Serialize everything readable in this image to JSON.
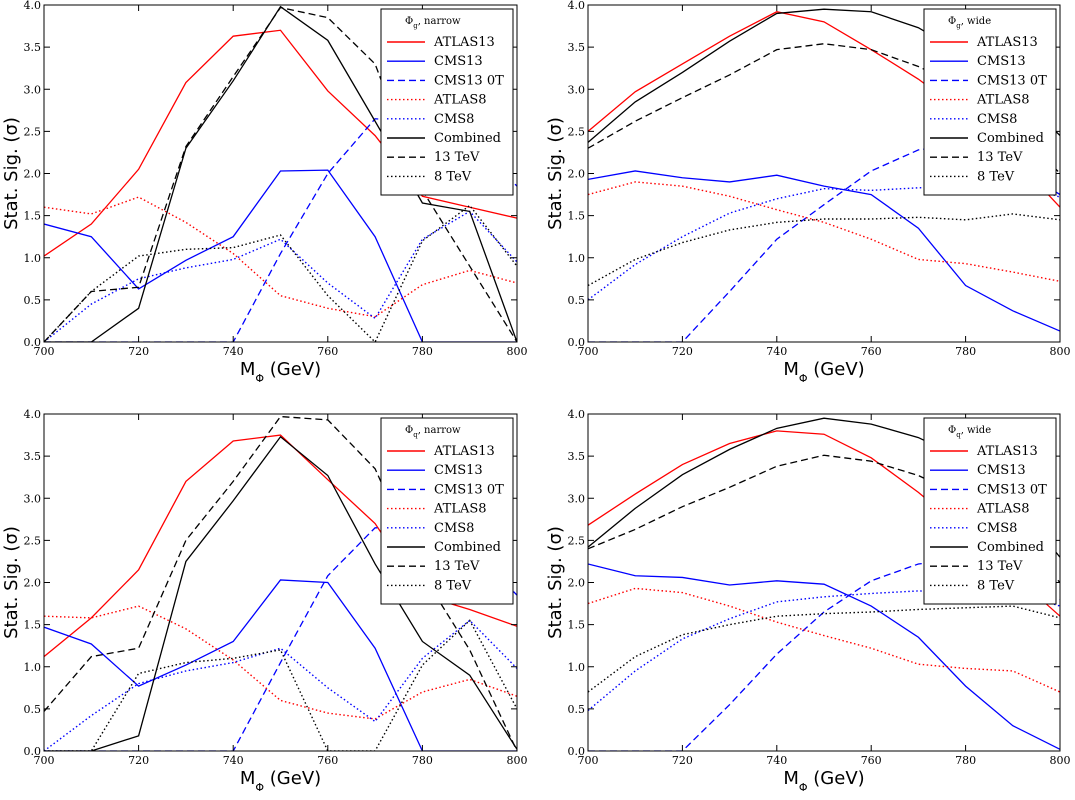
{
  "figure": {
    "panels": [
      {
        "id": "gg-narrow",
        "legend_title": "Φ_g, narrow",
        "xlabel": "M_Φ (GeV)",
        "ylabel": "Stat. Sig. (σ)"
      },
      {
        "id": "gg-wide",
        "legend_title": "Φ_g, wide",
        "xlabel": "M_Φ (GeV)",
        "ylabel": "Stat. Sig. (σ)"
      },
      {
        "id": "qq-narrow",
        "legend_title": "Φ_q, narrow",
        "xlabel": "M_Φ (GeV)",
        "ylabel": "Stat. Sig. (σ)"
      },
      {
        "id": "qq-wide",
        "legend_title": "Φ_q, wide",
        "xlabel": "M_Φ (GeV)",
        "ylabel": "Stat. Sig. (σ)"
      }
    ]
  },
  "styles": {
    "ATLAS13": {
      "color": "#ff0000",
      "dash": "solid"
    },
    "CMS13": {
      "color": "#0000ff",
      "dash": "solid"
    },
    "CMS13 0T": {
      "color": "#0000ff",
      "dash": "dashed"
    },
    "ATLAS8": {
      "color": "#ff0000",
      "dash": "dotted"
    },
    "CMS8": {
      "color": "#0000ff",
      "dash": "dotted"
    },
    "Combined": {
      "color": "#000000",
      "dash": "solid"
    },
    "13 TeV": {
      "color": "#000000",
      "dash": "dashed"
    },
    "8 TeV": {
      "color": "#000000",
      "dash": "dotted"
    }
  },
  "chart_data": [
    {
      "type": "line",
      "x": [
        700,
        710,
        720,
        730,
        740,
        750,
        760,
        770,
        780,
        790,
        800
      ],
      "xlim": [
        700,
        800
      ],
      "ylim": [
        0,
        4
      ],
      "xticks": [
        "700",
        "720",
        "740",
        "760",
        "780",
        "800"
      ],
      "yticks": [
        "0.0",
        "0.5",
        "1.0",
        "1.5",
        "2.0",
        "2.5",
        "3.0",
        "3.5",
        "4.0"
      ],
      "legend_position": "top-right",
      "series": [
        {
          "name": "ATLAS13",
          "values": [
            1.02,
            1.4,
            2.05,
            3.08,
            3.63,
            3.7,
            2.98,
            2.45,
            1.73,
            1.6,
            1.47
          ]
        },
        {
          "name": "CMS13",
          "values": [
            1.4,
            1.25,
            0.63,
            0.97,
            1.25,
            2.03,
            2.04,
            1.25,
            0.0,
            0.0,
            0.0
          ]
        },
        {
          "name": "CMS13 0T",
          "values": [
            0.0,
            0.0,
            0.0,
            0.0,
            0.0,
            1.05,
            2.0,
            2.65,
            2.6,
            2.4,
            1.85
          ]
        },
        {
          "name": "ATLAS8",
          "values": [
            1.6,
            1.52,
            1.72,
            1.42,
            1.05,
            0.55,
            0.4,
            0.3,
            0.68,
            0.85,
            0.7
          ]
        },
        {
          "name": "CMS8",
          "values": [
            0.0,
            0.45,
            0.75,
            0.88,
            0.98,
            1.22,
            0.7,
            0.28,
            1.22,
            1.55,
            0.95
          ]
        },
        {
          "name": "Combined",
          "values": [
            0.0,
            0.0,
            0.4,
            2.3,
            3.1,
            3.98,
            3.58,
            2.62,
            1.65,
            1.55,
            0.0
          ]
        },
        {
          "name": "13 TeV",
          "values": [
            0.0,
            0.6,
            0.65,
            2.32,
            3.15,
            3.97,
            3.85,
            3.3,
            1.8,
            0.9,
            0.0
          ]
        },
        {
          "name": "8 TeV",
          "values": [
            0.0,
            0.6,
            1.02,
            1.1,
            1.12,
            1.27,
            0.55,
            0.0,
            1.2,
            1.62,
            0.9
          ]
        }
      ]
    },
    {
      "type": "line",
      "x": [
        700,
        710,
        720,
        730,
        740,
        750,
        760,
        770,
        780,
        790,
        800
      ],
      "xlim": [
        700,
        800
      ],
      "ylim": [
        0,
        4
      ],
      "xticks": [
        "700",
        "720",
        "740",
        "760",
        "780",
        "800"
      ],
      "yticks": [
        "0.0",
        "0.5",
        "1.0",
        "1.5",
        "2.0",
        "2.5",
        "3.0",
        "3.5",
        "4.0"
      ],
      "legend_position": "top-right",
      "series": [
        {
          "name": "ATLAS13",
          "values": [
            2.5,
            2.97,
            3.3,
            3.63,
            3.92,
            3.8,
            3.47,
            3.12,
            2.7,
            2.2,
            1.6
          ]
        },
        {
          "name": "CMS13",
          "values": [
            1.93,
            2.03,
            1.95,
            1.9,
            1.98,
            1.85,
            1.75,
            1.35,
            0.67,
            0.37,
            0.13
          ]
        },
        {
          "name": "CMS13 0T",
          "values": [
            0.0,
            0.0,
            0.0,
            0.6,
            1.22,
            1.63,
            2.03,
            2.28,
            2.35,
            2.1,
            1.75
          ]
        },
        {
          "name": "ATLAS8",
          "values": [
            1.75,
            1.9,
            1.85,
            1.73,
            1.57,
            1.42,
            1.22,
            0.98,
            0.93,
            0.83,
            0.72
          ]
        },
        {
          "name": "CMS8",
          "values": [
            0.5,
            0.92,
            1.25,
            1.53,
            1.7,
            1.82,
            1.8,
            1.83,
            1.85,
            1.9,
            1.72
          ]
        },
        {
          "name": "Combined",
          "values": [
            2.37,
            2.85,
            3.2,
            3.57,
            3.9,
            3.95,
            3.92,
            3.73,
            3.4,
            3.0,
            2.45
          ]
        },
        {
          "name": "13 TeV",
          "values": [
            2.3,
            2.62,
            2.9,
            3.17,
            3.47,
            3.54,
            3.47,
            3.27,
            3.0,
            2.6,
            2.0
          ]
        },
        {
          "name": "8 TeV",
          "values": [
            0.67,
            0.98,
            1.18,
            1.33,
            1.42,
            1.46,
            1.46,
            1.48,
            1.45,
            1.52,
            1.45
          ]
        }
      ]
    },
    {
      "type": "line",
      "x": [
        700,
        710,
        720,
        730,
        740,
        750,
        760,
        770,
        780,
        790,
        800
      ],
      "xlim": [
        700,
        800
      ],
      "ylim": [
        0,
        4
      ],
      "xticks": [
        "700",
        "720",
        "740",
        "760",
        "780",
        "800"
      ],
      "yticks": [
        "0.0",
        "0.5",
        "1.0",
        "1.5",
        "2.0",
        "2.5",
        "3.0",
        "3.5",
        "4.0"
      ],
      "legend_position": "top-right",
      "series": [
        {
          "name": "ATLAS13",
          "values": [
            1.12,
            1.58,
            2.15,
            3.2,
            3.68,
            3.75,
            3.22,
            2.7,
            1.85,
            1.68,
            1.48
          ]
        },
        {
          "name": "CMS13",
          "values": [
            1.47,
            1.27,
            0.77,
            1.02,
            1.3,
            2.03,
            2.0,
            1.22,
            0.0,
            0.0,
            0.0
          ]
        },
        {
          "name": "CMS13 0T",
          "values": [
            0.0,
            0.0,
            0.0,
            0.0,
            0.0,
            1.05,
            2.08,
            2.65,
            2.63,
            2.42,
            1.85
          ]
        },
        {
          "name": "ATLAS8",
          "values": [
            1.6,
            1.58,
            1.72,
            1.45,
            1.08,
            0.6,
            0.45,
            0.38,
            0.7,
            0.85,
            0.65
          ]
        },
        {
          "name": "CMS8",
          "values": [
            0.0,
            0.42,
            0.8,
            0.95,
            1.05,
            1.22,
            0.75,
            0.35,
            1.1,
            1.55,
            0.98
          ]
        },
        {
          "name": "Combined",
          "values": [
            0.0,
            0.0,
            0.18,
            2.25,
            2.97,
            3.73,
            3.27,
            2.22,
            1.3,
            0.9,
            0.02
          ]
        },
        {
          "name": "13 TeV",
          "values": [
            0.47,
            1.12,
            1.22,
            2.5,
            3.2,
            3.97,
            3.93,
            3.35,
            2.1,
            1.2,
            0.0
          ]
        },
        {
          "name": "8 TeV",
          "values": [
            0.0,
            0.0,
            0.92,
            1.05,
            1.1,
            1.2,
            0.0,
            0.0,
            1.02,
            1.55,
            0.5
          ]
        }
      ]
    },
    {
      "type": "line",
      "x": [
        700,
        710,
        720,
        730,
        740,
        750,
        760,
        770,
        780,
        790,
        800
      ],
      "xlim": [
        700,
        800
      ],
      "ylim": [
        0,
        4
      ],
      "xticks": [
        "700",
        "720",
        "740",
        "760",
        "780",
        "800"
      ],
      "yticks": [
        "0.0",
        "0.5",
        "1.0",
        "1.5",
        "2.0",
        "2.5",
        "3.0",
        "3.5",
        "4.0"
      ],
      "legend_position": "top-right",
      "series": [
        {
          "name": "ATLAS13",
          "values": [
            2.68,
            3.05,
            3.4,
            3.65,
            3.8,
            3.76,
            3.48,
            3.07,
            2.6,
            2.1,
            1.6
          ]
        },
        {
          "name": "CMS13",
          "values": [
            2.22,
            2.08,
            2.06,
            1.97,
            2.02,
            1.98,
            1.72,
            1.35,
            0.77,
            0.3,
            0.02
          ]
        },
        {
          "name": "CMS13 0T",
          "values": [
            0.0,
            0.0,
            0.0,
            0.55,
            1.15,
            1.65,
            2.02,
            2.22,
            2.28,
            2.12,
            1.8
          ]
        },
        {
          "name": "ATLAS8",
          "values": [
            1.75,
            1.93,
            1.88,
            1.72,
            1.53,
            1.37,
            1.22,
            1.03,
            0.98,
            0.95,
            0.7
          ]
        },
        {
          "name": "CMS8",
          "values": [
            0.48,
            0.95,
            1.33,
            1.57,
            1.77,
            1.83,
            1.87,
            1.9,
            1.88,
            1.9,
            1.72
          ]
        },
        {
          "name": "Combined",
          "values": [
            2.42,
            2.88,
            3.28,
            3.58,
            3.83,
            3.95,
            3.88,
            3.72,
            3.45,
            3.0,
            2.3
          ]
        },
        {
          "name": "13 TeV",
          "values": [
            2.4,
            2.63,
            2.9,
            3.13,
            3.38,
            3.51,
            3.44,
            3.27,
            3.0,
            2.6,
            2.0
          ]
        },
        {
          "name": "8 TeV",
          "values": [
            0.7,
            1.12,
            1.38,
            1.5,
            1.6,
            1.63,
            1.65,
            1.68,
            1.7,
            1.72,
            1.58
          ]
        }
      ]
    }
  ]
}
